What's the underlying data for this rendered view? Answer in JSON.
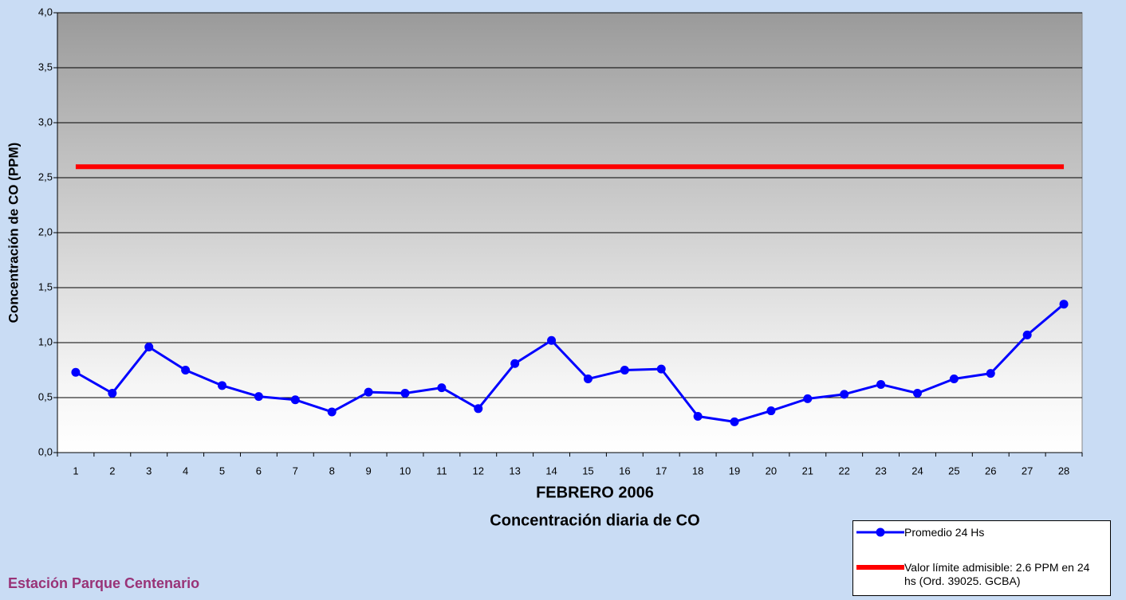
{
  "chart_data": {
    "type": "line",
    "title": "Concentración diaria de CO",
    "xlabel": "FEBRERO 2006",
    "ylabel": "Concentración de CO (PPM)",
    "subtitle": "Estación Parque Centenario",
    "categories": [
      "1",
      "2",
      "3",
      "4",
      "5",
      "6",
      "7",
      "8",
      "9",
      "10",
      "11",
      "12",
      "13",
      "14",
      "15",
      "16",
      "17",
      "18",
      "19",
      "20",
      "21",
      "22",
      "23",
      "24",
      "25",
      "26",
      "27",
      "28"
    ],
    "series": [
      {
        "name": "Promedio 24 Hs",
        "color": "#0000ff",
        "marker": true,
        "values": [
          0.73,
          0.54,
          0.96,
          0.75,
          0.61,
          0.51,
          0.48,
          0.37,
          0.55,
          0.54,
          0.59,
          0.4,
          0.81,
          1.02,
          0.67,
          0.75,
          0.76,
          0.33,
          0.28,
          0.38,
          0.49,
          0.53,
          0.62,
          0.54,
          0.67,
          0.72,
          1.07,
          1.35
        ]
      },
      {
        "name": "Valor límite admisible: 2.6 PPM en 24 hs (Ord. 39025. GCBA)",
        "color": "#ff0000",
        "marker": false,
        "values": [
          2.6,
          2.6,
          2.6,
          2.6,
          2.6,
          2.6,
          2.6,
          2.6,
          2.6,
          2.6,
          2.6,
          2.6,
          2.6,
          2.6,
          2.6,
          2.6,
          2.6,
          2.6,
          2.6,
          2.6,
          2.6,
          2.6,
          2.6,
          2.6,
          2.6,
          2.6,
          2.6,
          2.6
        ]
      }
    ],
    "ylim": [
      0,
      4
    ],
    "yticks": [
      {
        "value": 0,
        "label": "0,0"
      },
      {
        "value": 0.5,
        "label": "0,5"
      },
      {
        "value": 1,
        "label": "1,0"
      },
      {
        "value": 1.5,
        "label": "1,5"
      },
      {
        "value": 2,
        "label": "2,0"
      },
      {
        "value": 2.5,
        "label": "2,5"
      },
      {
        "value": 3,
        "label": "3,0"
      },
      {
        "value": 3.5,
        "label": "3,5"
      },
      {
        "value": 4,
        "label": "4,0"
      }
    ],
    "grid": true
  }
}
